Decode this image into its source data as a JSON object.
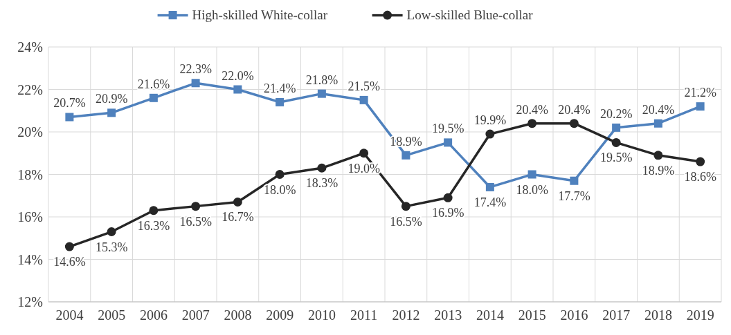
{
  "chart_data": {
    "type": "line",
    "categories": [
      "2004",
      "2005",
      "2006",
      "2007",
      "2008",
      "2009",
      "2010",
      "2011",
      "2012",
      "2013",
      "2014",
      "2015",
      "2016",
      "2017",
      "2018",
      "2019"
    ],
    "series": [
      {
        "name": "High-skilled White-collar",
        "color": "#4f81bd",
        "marker": "square",
        "values": [
          20.7,
          20.9,
          21.6,
          22.3,
          22.0,
          21.4,
          21.8,
          21.5,
          18.9,
          19.5,
          17.4,
          18.0,
          17.7,
          20.2,
          20.4,
          21.2
        ],
        "value_labels": [
          "20.7%",
          "20.9%",
          "21.6%",
          "22.3%",
          "22.0%",
          "21.4%",
          "21.8%",
          "21.5%",
          "18.9%",
          "19.5%",
          "17.4%",
          "18.0%",
          "17.7%",
          "20.2%",
          "20.4%",
          "21.2%"
        ]
      },
      {
        "name": "Low-skilled Blue-collar",
        "color": "#262626",
        "marker": "circle",
        "values": [
          14.6,
          15.3,
          16.3,
          16.5,
          16.7,
          18.0,
          18.3,
          19.0,
          16.5,
          16.9,
          19.9,
          20.4,
          20.4,
          19.5,
          18.9,
          18.6
        ],
        "value_labels": [
          "14.6%",
          "15.3%",
          "16.3%",
          "16.5%",
          "16.7%",
          "18.0%",
          "18.3%",
          "19.0%",
          "16.5%",
          "16.9%",
          "19.9%",
          "20.4%",
          "20.4%",
          "19.5%",
          "18.9%",
          "18.6%"
        ]
      }
    ],
    "ylim": [
      12,
      24
    ],
    "yticks": [
      {
        "value": 12,
        "label": "12%"
      },
      {
        "value": 14,
        "label": "14%"
      },
      {
        "value": 16,
        "label": "16%"
      },
      {
        "value": 18,
        "label": "18%"
      },
      {
        "value": 20,
        "label": "20%"
      },
      {
        "value": 22,
        "label": "22%"
      },
      {
        "value": 24,
        "label": "24%"
      }
    ],
    "grid": true,
    "legend": "top"
  }
}
